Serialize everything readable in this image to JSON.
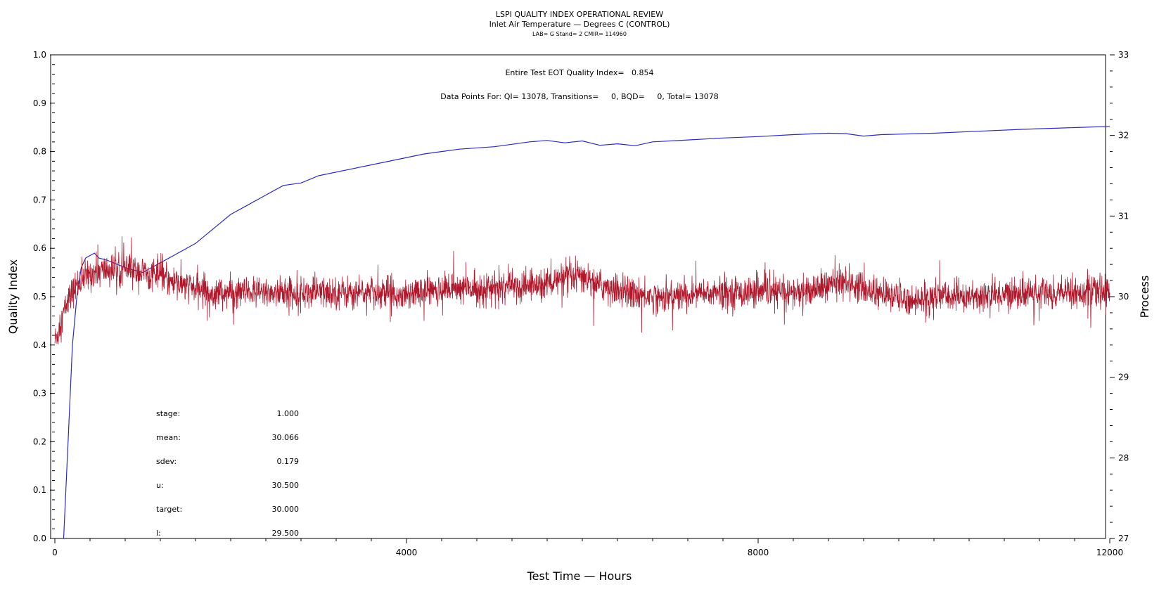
{
  "chart_data": {
    "type": "line",
    "title": "LSPI QUALITY INDEX OPERATIONAL REVIEW",
    "subtitle": "Inlet Air Temperature — Degrees C (CONTROL)",
    "subtitle2": "LAB= G Stand= 2 CMIR= 114960",
    "xlabel": "Test Time — Hours",
    "ylabel": "Quality Index",
    "y2label": "Process",
    "xlim": [
      0,
      12000
    ],
    "ylim": [
      0,
      1.0
    ],
    "y2lim": [
      27,
      33
    ],
    "x_ticks": [
      "0",
      "4000",
      "8000",
      "12000"
    ],
    "y_ticks": [
      "0.0",
      "0.1",
      "0.2",
      "0.3",
      "0.4",
      "0.5",
      "0.6",
      "0.7",
      "0.8",
      "0.9",
      "1.0"
    ],
    "y2_ticks": [
      "27",
      "28",
      "29",
      "30",
      "31",
      "32",
      "33"
    ],
    "annotations": {
      "qi_line": "Entire Test EOT Quality Index=   0.854",
      "points_line": "Data Points For: QI= 13078, Transitions=     0, BQD=     0, Total= 13078"
    },
    "stats": [
      {
        "label": "stage:",
        "value": "1.000"
      },
      {
        "label": "mean:",
        "value": "30.066"
      },
      {
        "label": "sdev:",
        "value": "0.179"
      },
      {
        "label": "u:",
        "value": "30.500"
      },
      {
        "label": "target:",
        "value": "30.000"
      },
      {
        "label": "l:",
        "value": "29.500"
      }
    ],
    "series": [
      {
        "axis": "left",
        "color": "#2b2bbf",
        "x": [
          100,
          150,
          200,
          250,
          300,
          350,
          400,
          450,
          500,
          600,
          800,
          1000,
          1200,
          1400,
          1600,
          1800,
          2000,
          2200,
          2400,
          2600,
          2800,
          3000,
          3400,
          3800,
          4200,
          4600,
          5000,
          5400,
          5600,
          5800,
          6000,
          6200,
          6400,
          6600,
          6800,
          7200,
          7600,
          8000,
          8400,
          8800,
          9000,
          9200,
          9400,
          10000,
          10500,
          11000,
          11500,
          12000
        ],
        "values": [
          0.0,
          0.2,
          0.4,
          0.5,
          0.56,
          0.58,
          0.585,
          0.59,
          0.58,
          0.575,
          0.56,
          0.55,
          0.57,
          0.59,
          0.61,
          0.64,
          0.67,
          0.69,
          0.71,
          0.73,
          0.735,
          0.75,
          0.765,
          0.78,
          0.795,
          0.805,
          0.81,
          0.82,
          0.823,
          0.818,
          0.822,
          0.813,
          0.816,
          0.812,
          0.82,
          0.824,
          0.828,
          0.831,
          0.835,
          0.838,
          0.837,
          0.832,
          0.835,
          0.838,
          0.842,
          0.846,
          0.849,
          0.852
        ]
      },
      {
        "axis": "right",
        "color": "#b0182c",
        "x": [
          0,
          50,
          100,
          150,
          200,
          250,
          300,
          400,
          500,
          600,
          800,
          1000,
          1200,
          1400,
          1600,
          1800,
          2000,
          2500,
          3000,
          3500,
          4000,
          4500,
          5000,
          5500,
          6000,
          6200,
          6500,
          6800,
          7000,
          7500,
          8000,
          8500,
          9000,
          9200,
          9500,
          9800,
          10000,
          10500,
          11000,
          11500,
          12000
        ],
        "values": [
          29.45,
          29.6,
          29.8,
          29.95,
          30.05,
          30.15,
          30.2,
          30.28,
          30.32,
          30.33,
          30.33,
          30.3,
          30.25,
          30.15,
          30.1,
          30.05,
          30.05,
          30.05,
          30.05,
          30.05,
          30.05,
          30.1,
          30.1,
          30.15,
          30.25,
          30.15,
          30.05,
          30.0,
          30.0,
          30.05,
          30.05,
          30.05,
          30.2,
          30.1,
          30.0,
          29.95,
          30.0,
          30.0,
          30.05,
          30.05,
          30.05
        ],
        "noise_sdev": 0.179
      }
    ]
  }
}
